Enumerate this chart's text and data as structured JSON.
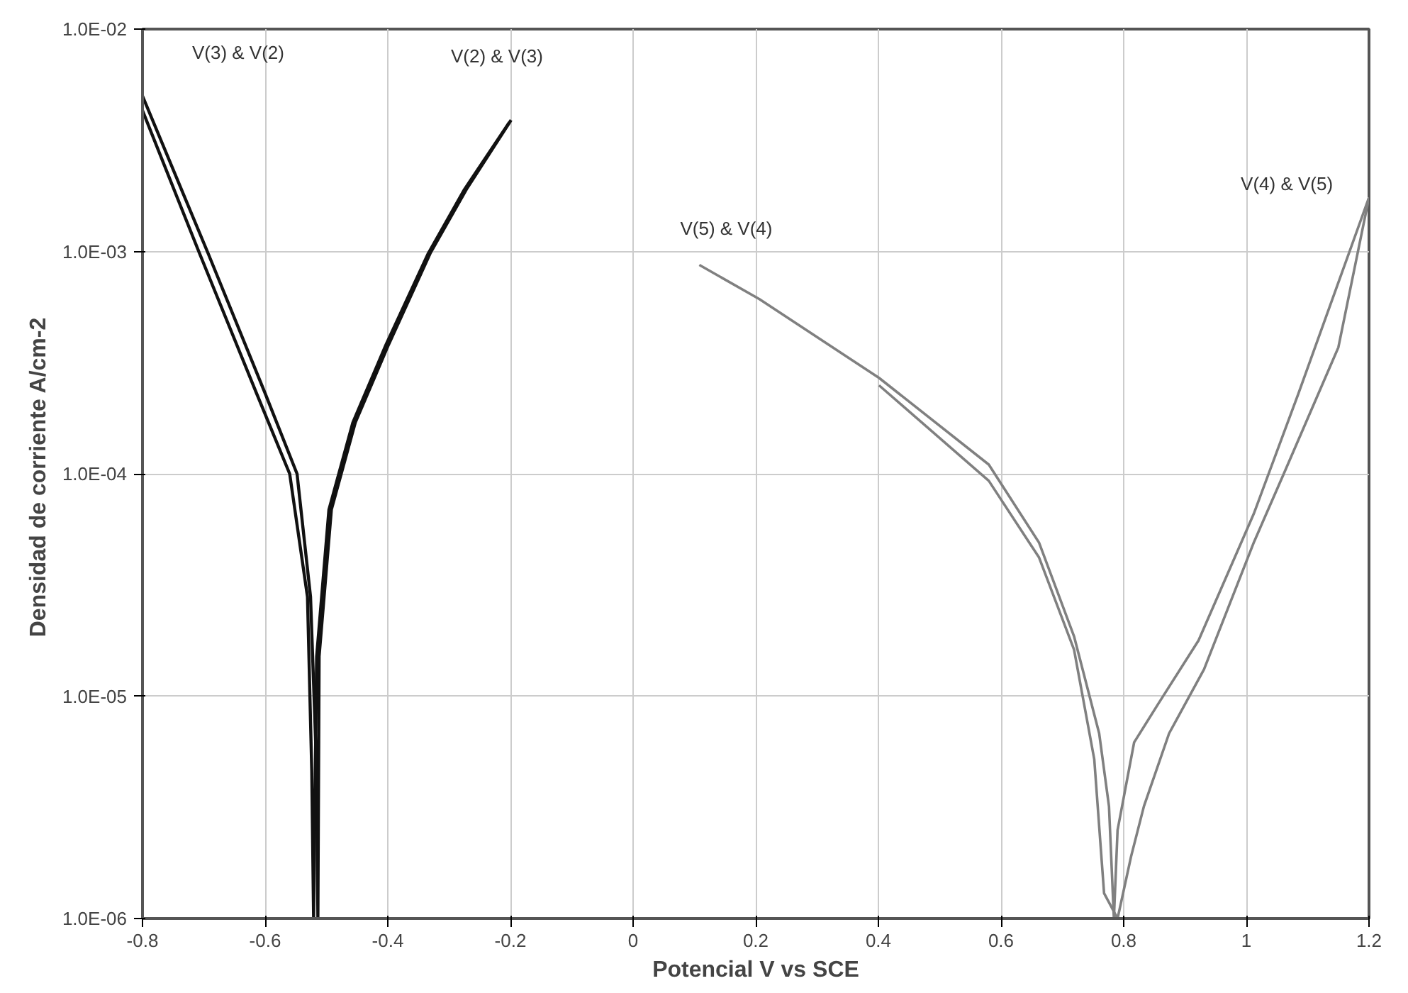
{
  "chart_data": {
    "type": "line",
    "xlabel": "Potencial V vs SCE",
    "ylabel": "Densidad de corriente  A/cm-2",
    "log": "y",
    "grid": true,
    "marker": "none",
    "line_style": "solid",
    "xlim": [
      -0.8,
      1.2
    ],
    "xticks": [
      -0.8,
      -0.6,
      -0.4,
      -0.2,
      0,
      0.2,
      0.4,
      0.6,
      0.8,
      1,
      1.2
    ],
    "ylim": [
      1e-06,
      0.01
    ],
    "yticks": [
      {
        "value": 1e-06,
        "label": "1.0E-06"
      },
      {
        "value": 1e-05,
        "label": "1.0E-05"
      },
      {
        "value": 0.0001,
        "label": "1.0E-04"
      },
      {
        "value": 0.001,
        "label": "1.0E-03"
      },
      {
        "value": 0.01,
        "label": "1.0E-02"
      }
    ],
    "series": [
      {
        "color": "#111111",
        "x": [
          -0.8,
          -0.693,
          -0.6,
          -0.548,
          -0.526,
          -0.516,
          -0.514,
          -0.512,
          -0.492,
          -0.453,
          -0.399,
          -0.331,
          -0.272,
          -0.199
        ],
        "values": [
          0.005,
          0.00098,
          0.00023,
          0.0001,
          2.8e-05,
          4.6e-06,
          1e-06,
          1.51e-05,
          6.9e-05,
          0.00017,
          0.00038,
          0.00098,
          0.0019,
          0.0039
        ]
      },
      {
        "color": "#111111",
        "x": [
          -0.8,
          -0.707,
          -0.614,
          -0.56,
          -0.531,
          -0.524,
          -0.521,
          -0.516,
          -0.496,
          -0.457,
          -0.403,
          -0.334,
          -0.275,
          -0.202
        ],
        "values": [
          0.0043,
          0.00098,
          0.00023,
          0.0001,
          2.8e-05,
          4.6e-06,
          1e-06,
          1.51e-05,
          6.9e-05,
          0.00017,
          0.00038,
          0.00098,
          0.0019,
          0.0038
        ]
      },
      {
        "color": "#808080",
        "x": [
          0.108,
          0.206,
          0.401,
          0.58,
          0.662,
          0.719,
          0.76,
          0.776,
          0.784,
          0.79,
          0.817,
          0.857,
          0.922,
          1.012,
          1.085,
          1.2
        ],
        "values": [
          0.00087,
          0.00061,
          0.00027,
          0.00011,
          4.9e-05,
          1.86e-05,
          6.8e-06,
          3.2e-06,
          1e-06,
          2.5e-06,
          6.2e-06,
          9.3e-06,
          1.78e-05,
          6.6e-05,
          0.00023,
          0.00175
        ]
      },
      {
        "color": "#808080",
        "x": [
          0.401,
          0.58,
          0.662,
          0.719,
          0.752,
          0.768,
          0.79,
          0.812,
          0.833,
          0.874,
          0.931,
          1.012,
          1.061,
          1.15,
          1.2
        ],
        "values": [
          0.00025,
          9.3e-05,
          4.2e-05,
          1.62e-05,
          5.2e-06,
          1.3e-06,
          1e-06,
          1.9e-06,
          3.2e-06,
          6.8e-06,
          1.32e-05,
          4.9e-05,
          0.0001,
          0.00037,
          0.00175
        ]
      }
    ],
    "annotations": [
      "V(3) & V(2)",
      "V(2) & V(3)",
      "V(5) & V(4)",
      "V(4) & V(5)"
    ]
  }
}
